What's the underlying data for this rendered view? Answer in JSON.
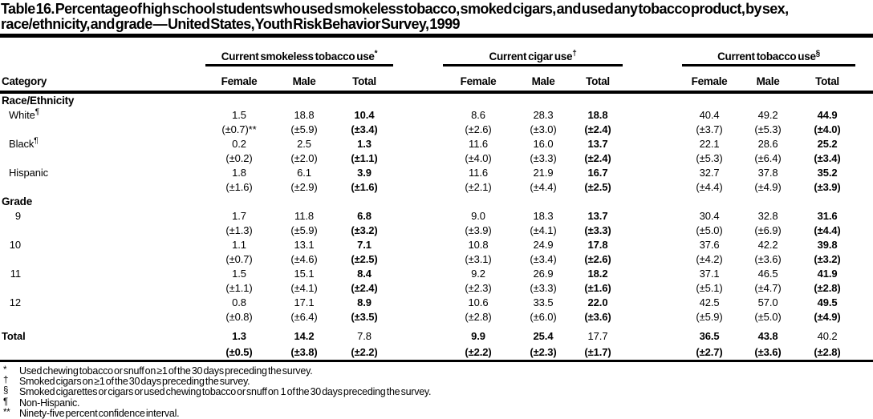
{
  "title": {
    "line1": "Table 16. Percentage of high school students who used smokeless tobacco, smoked cigars, and used any tobacco product, by sex,",
    "line2": "race/ethnicity, and grade — United States, Youth Risk Behavior Survey, 1999"
  },
  "table": {
    "category_header": "Category",
    "groups": [
      {
        "label": "Current smokeless tobacco use",
        "marker": "*"
      },
      {
        "label": "Current cigar use",
        "marker": "†"
      },
      {
        "label": "Current tobacco use",
        "marker": "§"
      }
    ],
    "sub_headers": [
      "Female",
      "Male",
      "Total"
    ],
    "rows": [
      {
        "type": "section",
        "label": "Race/Ethnicity"
      },
      {
        "type": "data",
        "label": "White",
        "marker": "¶",
        "values": [
          "1.5",
          "18.8",
          "10.4",
          "8.6",
          "28.3",
          "18.8",
          "40.4",
          "49.2",
          "44.9"
        ],
        "ci": [
          "(±0.7)**",
          "(±5.9)",
          "(±3.4)",
          "(±2.6)",
          "(±3.0)",
          "(±2.4)",
          "(±3.7)",
          "(±5.3)",
          "(±4.0)"
        ]
      },
      {
        "type": "data",
        "label": "Black",
        "marker": "¶",
        "values": [
          "0.2",
          "2.5",
          "1.3",
          "11.6",
          "16.0",
          "13.7",
          "22.1",
          "28.6",
          "25.2"
        ],
        "ci": [
          "(±0.2)",
          "(±2.0)",
          "(±1.1)",
          "(±4.0)",
          "(±3.3)",
          "(±2.4)",
          "(±5.3)",
          "(±6.4)",
          "(±3.4)"
        ]
      },
      {
        "type": "data",
        "label": "Hispanic",
        "values": [
          "1.8",
          "6.1",
          "3.9",
          "11.6",
          "21.9",
          "16.7",
          "32.7",
          "37.8",
          "35.2"
        ],
        "ci": [
          "(±1.6)",
          "(±2.9)",
          "(±1.6)",
          "(±2.1)",
          "(±4.4)",
          "(±2.5)",
          "(±4.4)",
          "(±4.9)",
          "(±3.9)"
        ]
      },
      {
        "type": "section",
        "label": "Grade"
      },
      {
        "type": "data",
        "label": "9",
        "values": [
          "1.7",
          "11.8",
          "6.8",
          "9.0",
          "18.3",
          "13.7",
          "30.4",
          "32.8",
          "31.6"
        ],
        "ci": [
          "(±1.3)",
          "(±5.9)",
          "(±3.2)",
          "(±3.9)",
          "(±4.1)",
          "(±3.3)",
          "(±5.0)",
          "(±6.9)",
          "(±4.4)"
        ]
      },
      {
        "type": "data",
        "label": "10",
        "values": [
          "1.1",
          "13.1",
          "7.1",
          "10.8",
          "24.9",
          "17.8",
          "37.6",
          "42.2",
          "39.8"
        ],
        "ci": [
          "(±0.7)",
          "(±4.6)",
          "(±2.5)",
          "(±3.1)",
          "(±3.4)",
          "(±2.6)",
          "(±4.2)",
          "(±3.6)",
          "(±3.2)"
        ]
      },
      {
        "type": "data",
        "label": "11",
        "values": [
          "1.5",
          "15.1",
          "8.4",
          "9.2",
          "26.9",
          "18.2",
          "37.1",
          "46.5",
          "41.9"
        ],
        "ci": [
          "(±1.1)",
          "(±4.1)",
          "(±2.4)",
          "(±2.3)",
          "(±3.3)",
          "(±1.6)",
          "(±5.1)",
          "(±4.7)",
          "(±2.8)"
        ]
      },
      {
        "type": "data",
        "label": "12",
        "values": [
          "0.8",
          "17.1",
          "8.9",
          "10.6",
          "33.5",
          "22.0",
          "42.5",
          "57.0",
          "49.5"
        ],
        "ci": [
          "(±0.8)",
          "(±6.4)",
          "(±3.5)",
          "(±2.8)",
          "(±6.0)",
          "(±3.6)",
          "(±5.9)",
          "(±5.0)",
          "(±4.9)"
        ]
      },
      {
        "type": "total",
        "label": "Total",
        "values": [
          "1.3",
          "14.2",
          "7.8",
          "9.9",
          "25.4",
          "17.7",
          "36.5",
          "43.8",
          "40.2"
        ],
        "ci": [
          "(±0.5)",
          "(±3.8)",
          "(±2.2)",
          "(±2.2)",
          "(±2.3)",
          "(±1.7)",
          "(±2.7)",
          "(±3.6)",
          "(±2.8)"
        ]
      }
    ]
  },
  "footnotes": [
    {
      "marker": "*",
      "text": "Used chewing tobacco or snuff on ≥1 of the 30 days preceding the survey."
    },
    {
      "marker": "†",
      "text": "Smoked cigars on ≥1 of the 30 days preceding the survey."
    },
    {
      "marker": "§",
      "text": "Smoked cigarettes or cigars or used chewing tobacco or snuff on  1 of the 30 days preceding the survey."
    },
    {
      "marker": "¶",
      "text": "Non-Hispanic."
    },
    {
      "marker": "**",
      "text": "Ninety-five percent confidence interval."
    }
  ]
}
